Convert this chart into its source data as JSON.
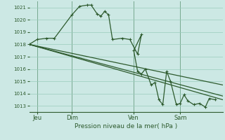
{
  "bg_color": "#cce8e4",
  "grid_color": "#99ccbb",
  "line_color": "#2d5a2d",
  "xlabel": "Pression niveau de la mer( hPa )",
  "ylim": [
    1012.5,
    1021.5
  ],
  "yticks": [
    1013,
    1014,
    1015,
    1016,
    1017,
    1018,
    1019,
    1020,
    1021
  ],
  "day_labels": [
    "Jeu",
    "Dim",
    "Ven",
    "Sam"
  ],
  "day_positions": [
    0.04,
    0.22,
    0.54,
    0.78
  ],
  "xlim": [
    0,
    1.0
  ],
  "envelope_lines": [
    [
      [
        0.0,
        1018.0
      ],
      [
        1.0,
        1013.5
      ]
    ],
    [
      [
        0.0,
        1018.0
      ],
      [
        1.0,
        1014.7
      ]
    ],
    [
      [
        0.0,
        1018.0
      ],
      [
        1.0,
        1013.8
      ]
    ]
  ],
  "main_line_x": [
    0.0,
    0.04,
    0.09,
    0.13,
    0.22,
    0.26,
    0.3,
    0.32,
    0.35,
    0.37,
    0.39,
    0.41,
    0.43,
    0.48,
    0.52,
    0.56,
    0.58,
    0.54,
    0.56,
    0.58,
    0.6,
    0.63,
    0.65,
    0.67,
    0.69,
    0.71,
    0.73,
    0.76,
    0.78,
    0.8,
    0.82,
    0.85,
    0.88,
    0.91,
    0.93,
    0.96
  ],
  "main_line_y": [
    1018.0,
    1018.4,
    1018.5,
    1018.5,
    1020.4,
    1021.1,
    1021.2,
    1021.2,
    1020.5,
    1020.3,
    1020.7,
    1020.4,
    1018.4,
    1018.5,
    1018.4,
    1017.2,
    1018.8,
    1017.5,
    1015.8,
    1015.6,
    1016.0,
    1014.7,
    1014.9,
    1013.5,
    1013.1,
    1015.8,
    1015.0,
    1013.1,
    1013.2,
    1013.9,
    1013.4,
    1013.1,
    1013.2,
    1012.9,
    1013.6,
    1013.5
  ]
}
